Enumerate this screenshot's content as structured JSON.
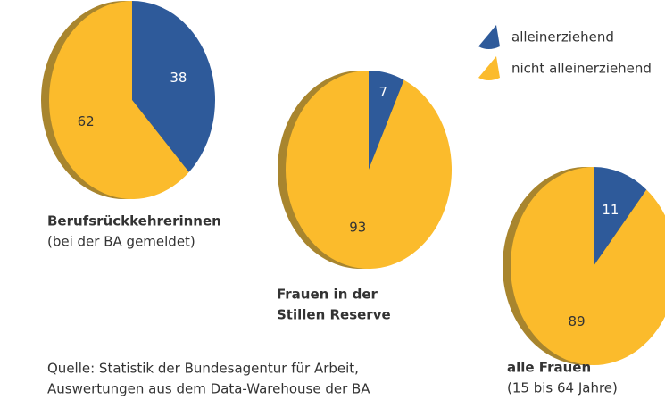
{
  "categories": [
    "alleinerziehend",
    "nicht alleinerziehend"
  ],
  "colors": [
    "#2e5a9a",
    "#fbbb2c"
  ],
  "chart_data": [
    {
      "type": "pie",
      "title": [
        "Berufsrückkehrerinnen"
      ],
      "subtitle": "(bei der BA gemeldet)",
      "values": [
        38,
        62
      ]
    },
    {
      "type": "pie",
      "title": [
        "Frauen in der",
        "Stillen Reserve"
      ],
      "values": [
        7,
        93
      ]
    },
    {
      "type": "pie",
      "title": [
        "alle Frauen"
      ],
      "subtitle": "(15 bis 64 Jahre)",
      "values": [
        11,
        89
      ]
    }
  ],
  "source": [
    "Quelle: Statistik der Bundesagentur für Arbeit,",
    "Auswertungen aus dem Data-Warehouse der BA"
  ]
}
